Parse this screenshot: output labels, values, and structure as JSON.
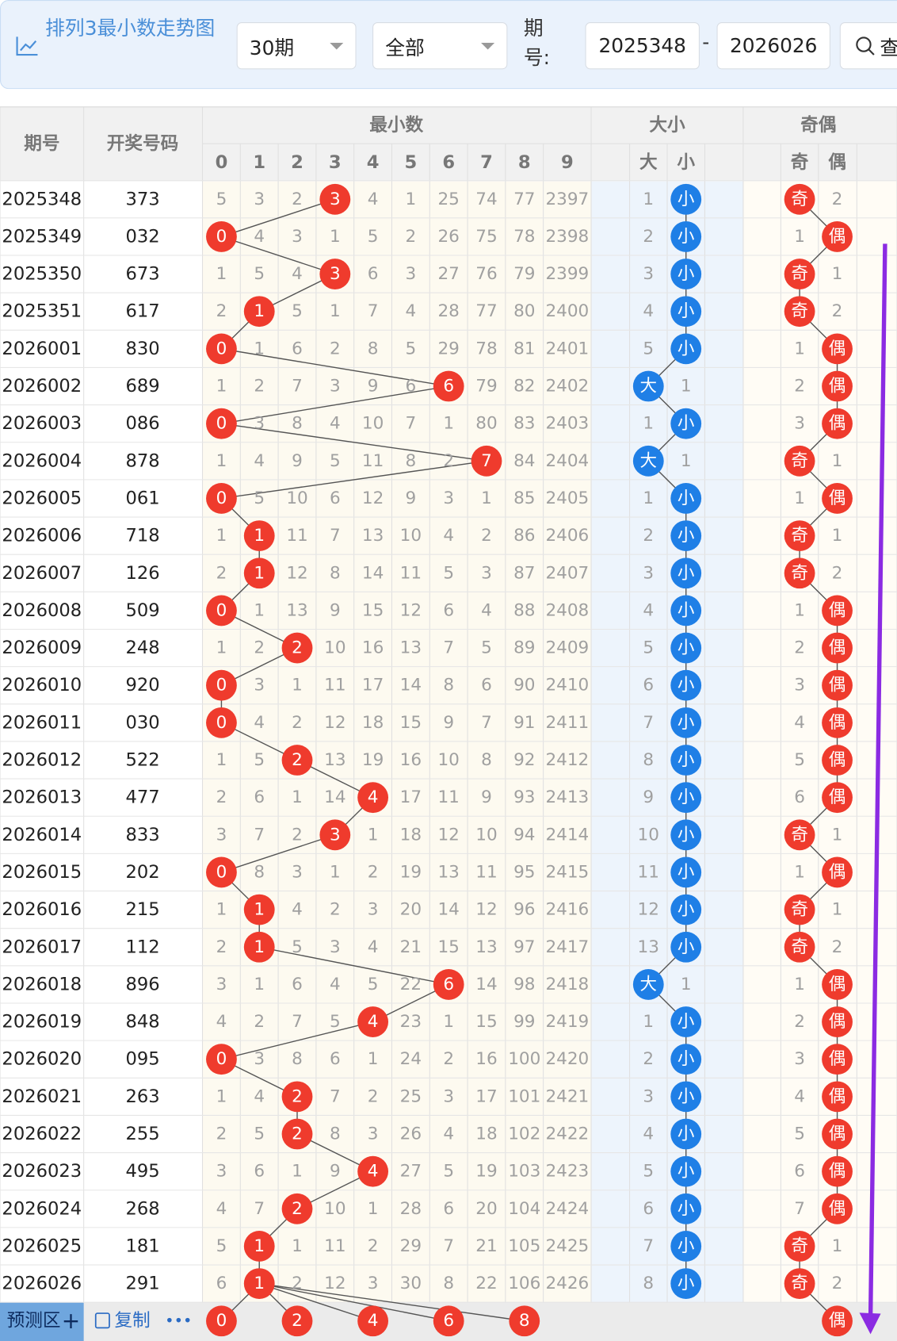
{
  "header": {
    "title": "排列3最小数走势图",
    "period_select": "30期",
    "type_select": "全部",
    "issue_label": "期号:",
    "issue_from": "2025348",
    "issue_separator": "-",
    "issue_to": "2026026",
    "search_button": "查"
  },
  "table": {
    "issue_header": "期号",
    "number_header": "开奖号码",
    "min_group": "最小数",
    "min_columns": [
      0,
      1,
      2,
      3,
      4,
      5,
      6,
      7,
      8,
      9
    ],
    "size_group": "大小",
    "size_columns": [
      "大",
      "小"
    ],
    "parity_group": "奇偶",
    "parity_columns": [
      "奇",
      "偶"
    ],
    "rows": [
      {
        "issue": "2025348",
        "number": "373",
        "min": [
          5,
          3,
          2,
          3,
          4,
          1,
          25,
          74,
          77,
          2397
        ],
        "size": [
          1,
          "小"
        ],
        "parity": [
          "奇",
          2
        ]
      },
      {
        "issue": "2025349",
        "number": "032",
        "min": [
          0,
          4,
          3,
          1,
          5,
          2,
          26,
          75,
          78,
          2398
        ],
        "size": [
          2,
          "小"
        ],
        "parity": [
          1,
          "偶"
        ]
      },
      {
        "issue": "2025350",
        "number": "673",
        "min": [
          1,
          5,
          4,
          3,
          6,
          3,
          27,
          76,
          79,
          2399
        ],
        "size": [
          3,
          "小"
        ],
        "parity": [
          "奇",
          1
        ]
      },
      {
        "issue": "2025351",
        "number": "617",
        "min": [
          2,
          1,
          5,
          1,
          7,
          4,
          28,
          77,
          80,
          2400
        ],
        "size": [
          4,
          "小"
        ],
        "parity": [
          "奇",
          2
        ]
      },
      {
        "issue": "2026001",
        "number": "830",
        "min": [
          0,
          1,
          6,
          2,
          8,
          5,
          29,
          78,
          81,
          2401
        ],
        "size": [
          5,
          "小"
        ],
        "parity": [
          1,
          "偶"
        ]
      },
      {
        "issue": "2026002",
        "number": "689",
        "min": [
          1,
          2,
          7,
          3,
          9,
          6,
          6,
          79,
          82,
          2402
        ],
        "size": [
          "大",
          1
        ],
        "parity": [
          2,
          "偶"
        ]
      },
      {
        "issue": "2026003",
        "number": "086",
        "min": [
          0,
          3,
          8,
          4,
          10,
          7,
          1,
          80,
          83,
          2403
        ],
        "size": [
          1,
          "小"
        ],
        "parity": [
          3,
          "偶"
        ]
      },
      {
        "issue": "2026004",
        "number": "878",
        "min": [
          1,
          4,
          9,
          5,
          11,
          8,
          2,
          7,
          84,
          2404
        ],
        "size": [
          "大",
          1
        ],
        "parity": [
          "奇",
          1
        ]
      },
      {
        "issue": "2026005",
        "number": "061",
        "min": [
          0,
          5,
          10,
          6,
          12,
          9,
          3,
          1,
          85,
          2405
        ],
        "size": [
          1,
          "小"
        ],
        "parity": [
          1,
          "偶"
        ]
      },
      {
        "issue": "2026006",
        "number": "718",
        "min": [
          1,
          1,
          11,
          7,
          13,
          10,
          4,
          2,
          86,
          2406
        ],
        "size": [
          2,
          "小"
        ],
        "parity": [
          "奇",
          1
        ]
      },
      {
        "issue": "2026007",
        "number": "126",
        "min": [
          2,
          1,
          12,
          8,
          14,
          11,
          5,
          3,
          87,
          2407
        ],
        "size": [
          3,
          "小"
        ],
        "parity": [
          "奇",
          2
        ]
      },
      {
        "issue": "2026008",
        "number": "509",
        "min": [
          0,
          1,
          13,
          9,
          15,
          12,
          6,
          4,
          88,
          2408
        ],
        "size": [
          4,
          "小"
        ],
        "parity": [
          1,
          "偶"
        ]
      },
      {
        "issue": "2026009",
        "number": "248",
        "min": [
          1,
          2,
          2,
          10,
          16,
          13,
          7,
          5,
          89,
          2409
        ],
        "size": [
          5,
          "小"
        ],
        "parity": [
          2,
          "偶"
        ]
      },
      {
        "issue": "2026010",
        "number": "920",
        "min": [
          0,
          3,
          1,
          11,
          17,
          14,
          8,
          6,
          90,
          2410
        ],
        "size": [
          6,
          "小"
        ],
        "parity": [
          3,
          "偶"
        ]
      },
      {
        "issue": "2026011",
        "number": "030",
        "min": [
          0,
          4,
          2,
          12,
          18,
          15,
          9,
          7,
          91,
          2411
        ],
        "size": [
          7,
          "小"
        ],
        "parity": [
          4,
          "偶"
        ]
      },
      {
        "issue": "2026012",
        "number": "522",
        "min": [
          1,
          5,
          2,
          13,
          19,
          16,
          10,
          8,
          92,
          2412
        ],
        "size": [
          8,
          "小"
        ],
        "parity": [
          5,
          "偶"
        ]
      },
      {
        "issue": "2026013",
        "number": "477",
        "min": [
          2,
          6,
          1,
          14,
          4,
          17,
          11,
          9,
          93,
          2413
        ],
        "size": [
          9,
          "小"
        ],
        "parity": [
          6,
          "偶"
        ]
      },
      {
        "issue": "2026014",
        "number": "833",
        "min": [
          3,
          7,
          2,
          3,
          1,
          18,
          12,
          10,
          94,
          2414
        ],
        "size": [
          10,
          "小"
        ],
        "parity": [
          "奇",
          1
        ]
      },
      {
        "issue": "2026015",
        "number": "202",
        "min": [
          0,
          8,
          3,
          1,
          2,
          19,
          13,
          11,
          95,
          2415
        ],
        "size": [
          11,
          "小"
        ],
        "parity": [
          1,
          "偶"
        ]
      },
      {
        "issue": "2026016",
        "number": "215",
        "min": [
          1,
          1,
          4,
          2,
          3,
          20,
          14,
          12,
          96,
          2416
        ],
        "size": [
          12,
          "小"
        ],
        "parity": [
          "奇",
          1
        ]
      },
      {
        "issue": "2026017",
        "number": "112",
        "min": [
          2,
          1,
          5,
          3,
          4,
          21,
          15,
          13,
          97,
          2417
        ],
        "size": [
          13,
          "小"
        ],
        "parity": [
          "奇",
          2
        ]
      },
      {
        "issue": "2026018",
        "number": "896",
        "min": [
          3,
          1,
          6,
          4,
          5,
          22,
          6,
          14,
          98,
          2418
        ],
        "size": [
          "大",
          1
        ],
        "parity": [
          1,
          "偶"
        ]
      },
      {
        "issue": "2026019",
        "number": "848",
        "min": [
          4,
          2,
          7,
          5,
          4,
          23,
          1,
          15,
          99,
          2419
        ],
        "size": [
          1,
          "小"
        ],
        "parity": [
          2,
          "偶"
        ]
      },
      {
        "issue": "2026020",
        "number": "095",
        "min": [
          0,
          3,
          8,
          6,
          1,
          24,
          2,
          16,
          100,
          2420
        ],
        "size": [
          2,
          "小"
        ],
        "parity": [
          3,
          "偶"
        ]
      },
      {
        "issue": "2026021",
        "number": "263",
        "min": [
          1,
          4,
          2,
          7,
          2,
          25,
          3,
          17,
          101,
          2421
        ],
        "size": [
          3,
          "小"
        ],
        "parity": [
          4,
          "偶"
        ]
      },
      {
        "issue": "2026022",
        "number": "255",
        "min": [
          2,
          5,
          2,
          8,
          3,
          26,
          4,
          18,
          102,
          2422
        ],
        "size": [
          4,
          "小"
        ],
        "parity": [
          5,
          "偶"
        ]
      },
      {
        "issue": "2026023",
        "number": "495",
        "min": [
          3,
          6,
          1,
          9,
          4,
          27,
          5,
          19,
          103,
          2423
        ],
        "size": [
          5,
          "小"
        ],
        "parity": [
          6,
          "偶"
        ]
      },
      {
        "issue": "2026024",
        "number": "268",
        "min": [
          4,
          7,
          2,
          10,
          1,
          28,
          6,
          20,
          104,
          2424
        ],
        "size": [
          6,
          "小"
        ],
        "parity": [
          7,
          "偶"
        ]
      },
      {
        "issue": "2026025",
        "number": "181",
        "min": [
          5,
          1,
          1,
          11,
          2,
          29,
          7,
          21,
          105,
          2425
        ],
        "size": [
          7,
          "小"
        ],
        "parity": [
          "奇",
          1
        ]
      },
      {
        "issue": "2026026",
        "number": "291",
        "min": [
          6,
          1,
          2,
          12,
          3,
          30,
          8,
          22,
          106,
          2426
        ],
        "size": [
          8,
          "小"
        ],
        "parity": [
          "奇",
          2
        ]
      }
    ]
  },
  "footer": {
    "label": "预测区",
    "add": "+",
    "copy": "复制",
    "more": "•••",
    "min_predictions": [
      0,
      2,
      4,
      6,
      8
    ],
    "parity_prediction": "偶"
  }
}
